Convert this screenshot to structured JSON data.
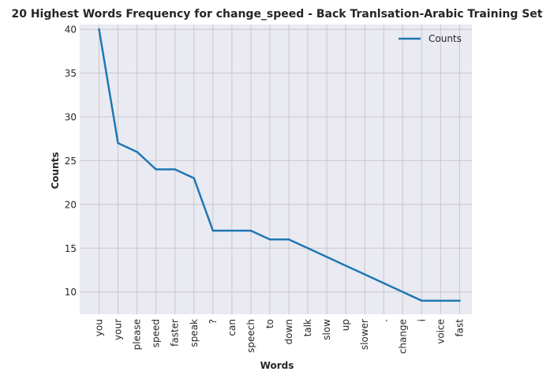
{
  "chart_data": {
    "type": "line",
    "title": "20 Highest Words Frequency for change_speed - Back Tranlsation-Arabic Training Set",
    "xlabel": "Words",
    "ylabel": "Counts",
    "categories": [
      "you",
      "your",
      "please",
      "speed",
      "faster",
      "speak",
      "?",
      "can",
      "speech",
      "to",
      "down",
      "talk",
      "slow",
      "up",
      "slower",
      ".",
      "change",
      "i",
      "voice",
      "fast"
    ],
    "series": [
      {
        "name": "Counts",
        "color": "#1f77b4",
        "values": [
          40,
          27,
          26,
          24,
          24,
          23,
          17,
          17,
          17,
          16,
          16,
          15,
          14,
          13,
          12,
          11,
          10,
          9,
          9,
          9
        ]
      }
    ],
    "yticks": [
      10,
      15,
      20,
      25,
      30,
      35,
      40
    ],
    "ylim": [
      7.45,
      40.55
    ],
    "grid": true,
    "legend": "top-right",
    "background": "#eaeaf2",
    "grid_color": "#c8c8c8"
  }
}
